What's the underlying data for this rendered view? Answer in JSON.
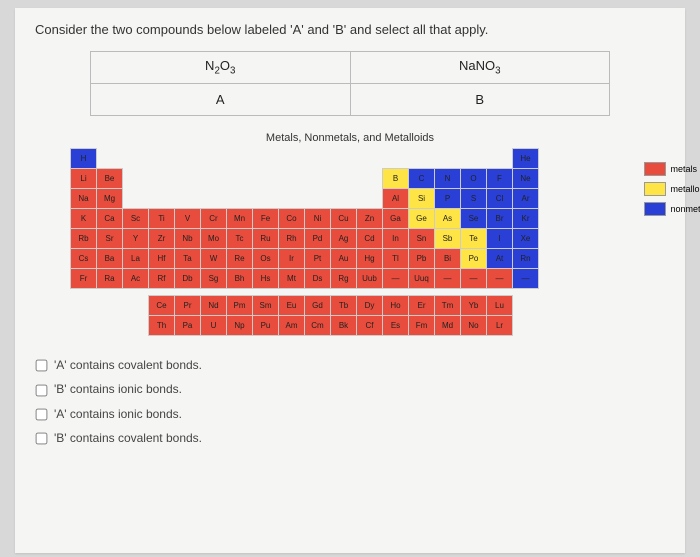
{
  "question": "Consider the two compounds below labeled 'A' and 'B' and select all that apply.",
  "compounds": {
    "a_formula_html": "N<sub>2</sub>O<sub>3</sub>",
    "a_label": "A",
    "b_formula_html": "NaNO<sub>3</sub>",
    "b_label": "B"
  },
  "pt": {
    "title": "Metals, Nonmetals, and Metalloids",
    "rows": [
      [
        "H",
        "",
        "",
        "",
        "",
        "",
        "",
        "",
        "",
        "",
        "",
        "",
        "",
        "",
        "",
        "",
        "",
        "He"
      ],
      [
        "Li",
        "Be",
        "",
        "",
        "",
        "",
        "",
        "",
        "",
        "",
        "",
        "",
        "B",
        "C",
        "N",
        "O",
        "F",
        "Ne"
      ],
      [
        "Na",
        "Mg",
        "",
        "",
        "",
        "",
        "",
        "",
        "",
        "",
        "",
        "",
        "Al",
        "Si",
        "P",
        "S",
        "Cl",
        "Ar"
      ],
      [
        "K",
        "Ca",
        "Sc",
        "Ti",
        "V",
        "Cr",
        "Mn",
        "Fe",
        "Co",
        "Ni",
        "Cu",
        "Zn",
        "Ga",
        "Ge",
        "As",
        "Se",
        "Br",
        "Kr"
      ],
      [
        "Rb",
        "Sr",
        "Y",
        "Zr",
        "Nb",
        "Mo",
        "Tc",
        "Ru",
        "Rh",
        "Pd",
        "Ag",
        "Cd",
        "In",
        "Sn",
        "Sb",
        "Te",
        "I",
        "Xe"
      ],
      [
        "Cs",
        "Ba",
        "La",
        "Hf",
        "Ta",
        "W",
        "Re",
        "Os",
        "Ir",
        "Pt",
        "Au",
        "Hg",
        "Tl",
        "Pb",
        "Bi",
        "Po",
        "At",
        "Rn"
      ],
      [
        "Fr",
        "Ra",
        "Ac",
        "Rf",
        "Db",
        "Sg",
        "Bh",
        "Hs",
        "Mt",
        "Ds",
        "Rg",
        "Uub",
        "—",
        "Uuq",
        "—",
        "—",
        "—",
        "—"
      ]
    ],
    "classes": [
      [
        "n",
        "e",
        "e",
        "e",
        "e",
        "e",
        "e",
        "e",
        "e",
        "e",
        "e",
        "e",
        "e",
        "e",
        "e",
        "e",
        "e",
        "n"
      ],
      [
        "m",
        "m",
        "e",
        "e",
        "e",
        "e",
        "e",
        "e",
        "e",
        "e",
        "e",
        "e",
        "l",
        "n",
        "n",
        "n",
        "n",
        "n"
      ],
      [
        "m",
        "m",
        "e",
        "e",
        "e",
        "e",
        "e",
        "e",
        "e",
        "e",
        "e",
        "e",
        "m",
        "l",
        "n",
        "n",
        "n",
        "n"
      ],
      [
        "m",
        "m",
        "m",
        "m",
        "m",
        "m",
        "m",
        "m",
        "m",
        "m",
        "m",
        "m",
        "m",
        "l",
        "l",
        "n",
        "n",
        "n"
      ],
      [
        "m",
        "m",
        "m",
        "m",
        "m",
        "m",
        "m",
        "m",
        "m",
        "m",
        "m",
        "m",
        "m",
        "m",
        "l",
        "l",
        "n",
        "n"
      ],
      [
        "m",
        "m",
        "m",
        "m",
        "m",
        "m",
        "m",
        "m",
        "m",
        "m",
        "m",
        "m",
        "m",
        "m",
        "m",
        "l",
        "n",
        "n"
      ],
      [
        "m",
        "m",
        "m",
        "m",
        "m",
        "m",
        "m",
        "m",
        "m",
        "m",
        "m",
        "m",
        "m",
        "m",
        "m",
        "m",
        "m",
        "n"
      ]
    ],
    "lan": [
      "Ce",
      "Pr",
      "Nd",
      "Pm",
      "Sm",
      "Eu",
      "Gd",
      "Tb",
      "Dy",
      "Ho",
      "Er",
      "Tm",
      "Yb",
      "Lu"
    ],
    "act": [
      "Th",
      "Pa",
      "U",
      "Np",
      "Pu",
      "Am",
      "Cm",
      "Bk",
      "Cf",
      "Es",
      "Fm",
      "Md",
      "No",
      "Lr"
    ]
  },
  "legend": {
    "metals": "metals",
    "metalloids": "metalloids",
    "nonmetals": "nonmetals"
  },
  "colors": {
    "metal": "#e74c3c",
    "metalloid": "#ffe446",
    "nonmetal": "#2a3fd6"
  },
  "options": [
    "'A' contains covalent bonds.",
    "'B' contains ionic bonds.",
    "'A' contains ionic bonds.",
    "'B' contains covalent bonds."
  ]
}
